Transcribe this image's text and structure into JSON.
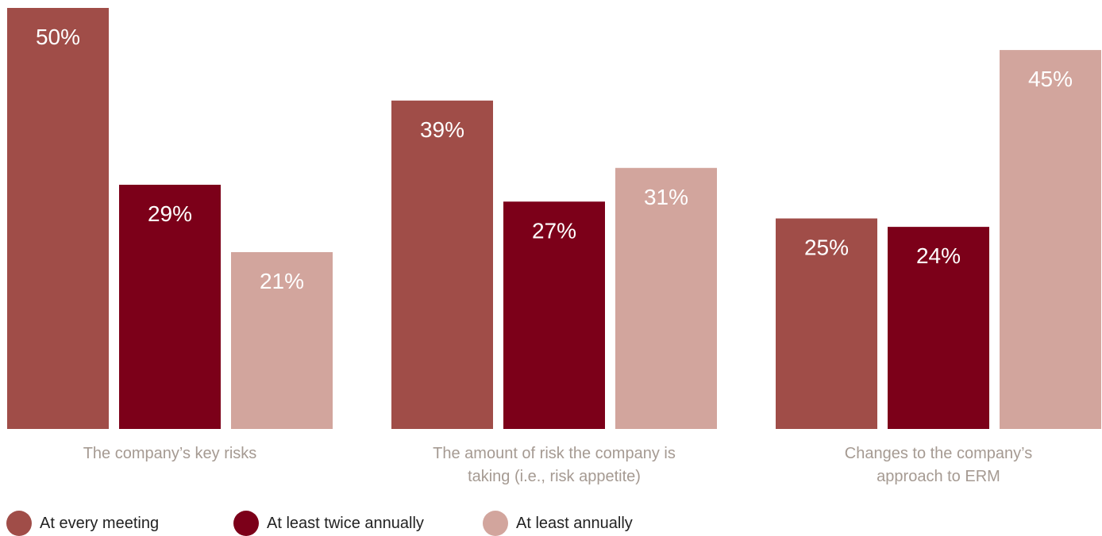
{
  "chart_data": {
    "type": "bar",
    "categories": [
      [
        "The company’s key risks"
      ],
      [
        "The amount of risk the company is",
        "taking (i.e., risk appetite)"
      ],
      [
        "Changes to the company’s",
        "approach to ERM"
      ]
    ],
    "series": [
      {
        "name": "At every meeting",
        "color": "#a04d48",
        "values": [
          50,
          39,
          25
        ]
      },
      {
        "name": "At least twice annually",
        "color": "#7c0019",
        "values": [
          29,
          27,
          24
        ]
      },
      {
        "name": "At least annually",
        "color": "#d2a59d",
        "values": [
          21,
          31,
          45
        ]
      }
    ],
    "value_suffix": "%",
    "ylim": [
      0,
      50
    ],
    "grid": false,
    "legend_position": "bottom-left"
  }
}
